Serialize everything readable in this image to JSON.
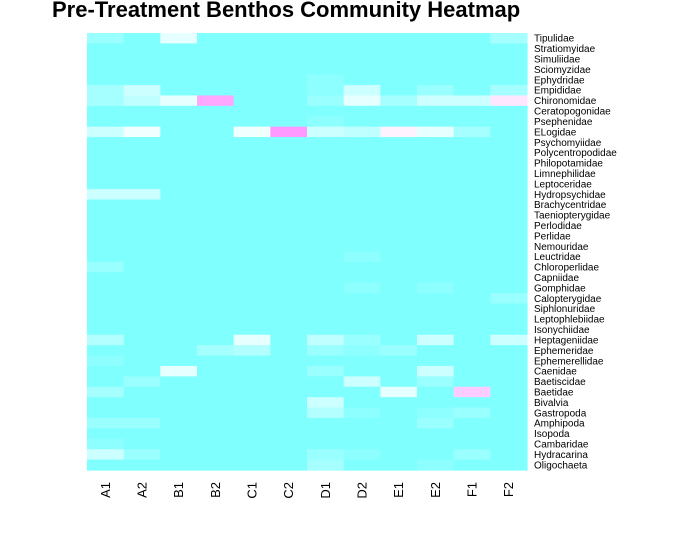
{
  "chart_data": {
    "type": "heatmap",
    "title": "Pre-Treatment Benthos Community Heatmap",
    "columns": [
      "A1",
      "A2",
      "B1",
      "B2",
      "C1",
      "C2",
      "D1",
      "D2",
      "E1",
      "E2",
      "F1",
      "F2"
    ],
    "rows": [
      "Tipulidae",
      "Stratiomyidae",
      "Simuliidae",
      "Sciomyzidae",
      "Ephydridae",
      "Empididae",
      "Chironomidae",
      "Ceratopogonidae",
      "Psephenidae",
      "ELogidae",
      "Psychomyiidae",
      "Polycentropodidae",
      "Philopotamidae",
      "Limnephilidae",
      "Leptoceridae",
      "Hydropsychidae",
      "Brachycentridae",
      "Taeniopterygidae",
      "Perlodidae",
      "Perlidae",
      "Nemouridae",
      "Leuctridae",
      "Chloroperlidae",
      "Capniidae",
      "Gomphidae",
      "Calopterygidae",
      "Siphlonuridae",
      "Leptophlebiidae",
      "Isonychiidae",
      "Heptageniidae",
      "Ephemeridae",
      "Ephemerellidae",
      "Caenidae",
      "Baetiscidae",
      "Baetidae",
      "Bivalvia",
      "Gastropoda",
      "Amphipoda",
      "Isopoda",
      "Cambaridae",
      "Hydracarina",
      "Oligochaeta"
    ],
    "values": [
      [
        0.1,
        0,
        0.4,
        0,
        0,
        0,
        0,
        0,
        0,
        0,
        0,
        0.15
      ],
      [
        0,
        0,
        0,
        0,
        0,
        0,
        0,
        0,
        0,
        0,
        0,
        0
      ],
      [
        0,
        0,
        0,
        0,
        0,
        0,
        0,
        0,
        0,
        0,
        0,
        0
      ],
      [
        0,
        0,
        0,
        0,
        0,
        0,
        0,
        0,
        0,
        0,
        0,
        0
      ],
      [
        0,
        0,
        0,
        0,
        0,
        0,
        0.05,
        0,
        0,
        0,
        0,
        0
      ],
      [
        0.15,
        0.3,
        0,
        0,
        0,
        0,
        0.05,
        0.3,
        0,
        0.1,
        0,
        0.15
      ],
      [
        0.15,
        0.25,
        0.4,
        0.85,
        0,
        0,
        0.1,
        0.4,
        0.15,
        0.3,
        0.3,
        0.6
      ],
      [
        0,
        0,
        0,
        0,
        0,
        0,
        0,
        0,
        0,
        0,
        0,
        0
      ],
      [
        0,
        0,
        0,
        0,
        0,
        0,
        0.05,
        0,
        0,
        0,
        0,
        0
      ],
      [
        0.3,
        0.45,
        0,
        0,
        0.45,
        0.9,
        0.3,
        0.25,
        0.55,
        0.4,
        0.15,
        0
      ],
      [
        0,
        0,
        0,
        0,
        0,
        0,
        0,
        0,
        0,
        0,
        0,
        0
      ],
      [
        0,
        0,
        0,
        0,
        0,
        0,
        0,
        0,
        0,
        0,
        0,
        0
      ],
      [
        0,
        0,
        0,
        0,
        0,
        0,
        0,
        0,
        0,
        0,
        0,
        0
      ],
      [
        0,
        0,
        0,
        0,
        0,
        0,
        0,
        0,
        0,
        0,
        0,
        0
      ],
      [
        0,
        0,
        0,
        0,
        0,
        0,
        0,
        0,
        0,
        0,
        0,
        0
      ],
      [
        0.3,
        0.3,
        0,
        0,
        0,
        0,
        0,
        0,
        0,
        0,
        0,
        0
      ],
      [
        0,
        0,
        0,
        0,
        0,
        0,
        0,
        0,
        0,
        0,
        0,
        0
      ],
      [
        0,
        0,
        0,
        0,
        0,
        0,
        0,
        0,
        0,
        0,
        0,
        0
      ],
      [
        0,
        0,
        0,
        0,
        0,
        0,
        0,
        0,
        0,
        0,
        0,
        0
      ],
      [
        0,
        0,
        0,
        0,
        0,
        0,
        0,
        0,
        0,
        0,
        0,
        0
      ],
      [
        0,
        0,
        0,
        0,
        0,
        0,
        0,
        0,
        0,
        0,
        0,
        0
      ],
      [
        0,
        0,
        0,
        0,
        0,
        0,
        0,
        0.05,
        0,
        0,
        0,
        0
      ],
      [
        0.1,
        0,
        0,
        0,
        0,
        0,
        0,
        0,
        0,
        0,
        0,
        0
      ],
      [
        0,
        0,
        0,
        0,
        0,
        0,
        0,
        0,
        0,
        0,
        0,
        0
      ],
      [
        0,
        0,
        0,
        0,
        0,
        0,
        0,
        0.05,
        0,
        0.05,
        0,
        0
      ],
      [
        0,
        0,
        0,
        0,
        0,
        0,
        0,
        0,
        0,
        0,
        0,
        0.1
      ],
      [
        0,
        0,
        0,
        0,
        0,
        0,
        0,
        0,
        0,
        0,
        0,
        0
      ],
      [
        0,
        0,
        0,
        0,
        0,
        0,
        0,
        0,
        0,
        0,
        0,
        0
      ],
      [
        0,
        0,
        0,
        0,
        0,
        0,
        0,
        0,
        0,
        0,
        0,
        0
      ],
      [
        0.2,
        0,
        0,
        0,
        0.4,
        0,
        0.25,
        0.1,
        0,
        0.3,
        0,
        0.3
      ],
      [
        0,
        0,
        0,
        0.15,
        0.2,
        0,
        0.1,
        0.05,
        0.1,
        0,
        0,
        0
      ],
      [
        0.05,
        0,
        0,
        0,
        0,
        0,
        0,
        0,
        0,
        0,
        0,
        0
      ],
      [
        0,
        0,
        0.4,
        0,
        0,
        0,
        0.1,
        0,
        0,
        0.3,
        0,
        0
      ],
      [
        0,
        0.1,
        0,
        0,
        0,
        0,
        0,
        0.3,
        0,
        0.1,
        0,
        0
      ],
      [
        0.15,
        0,
        0,
        0,
        0,
        0,
        0,
        0,
        0.4,
        0,
        0.7,
        0
      ],
      [
        0,
        0,
        0,
        0,
        0,
        0,
        0.3,
        0,
        0,
        0,
        0,
        0
      ],
      [
        0,
        0,
        0,
        0,
        0,
        0,
        0.2,
        0.05,
        0,
        0.05,
        0.1,
        0
      ],
      [
        0.1,
        0.1,
        0,
        0,
        0,
        0,
        0,
        0,
        0,
        0.1,
        0,
        0
      ],
      [
        0,
        0,
        0,
        0,
        0,
        0,
        0,
        0,
        0,
        0,
        0,
        0
      ],
      [
        0.05,
        0,
        0,
        0,
        0,
        0,
        0,
        0,
        0,
        0,
        0,
        0
      ],
      [
        0.3,
        0.1,
        0,
        0,
        0,
        0,
        0.1,
        0.05,
        0,
        0,
        0.1,
        0
      ],
      [
        0,
        0,
        0,
        0,
        0,
        0,
        0.15,
        0,
        0,
        0.05,
        0,
        0
      ]
    ],
    "value_range": [
      0,
      1
    ],
    "colors": {
      "low": "#80ffff",
      "mid": "#ffffff",
      "high": "#ff80ff"
    },
    "legend": "none",
    "grid": false
  }
}
